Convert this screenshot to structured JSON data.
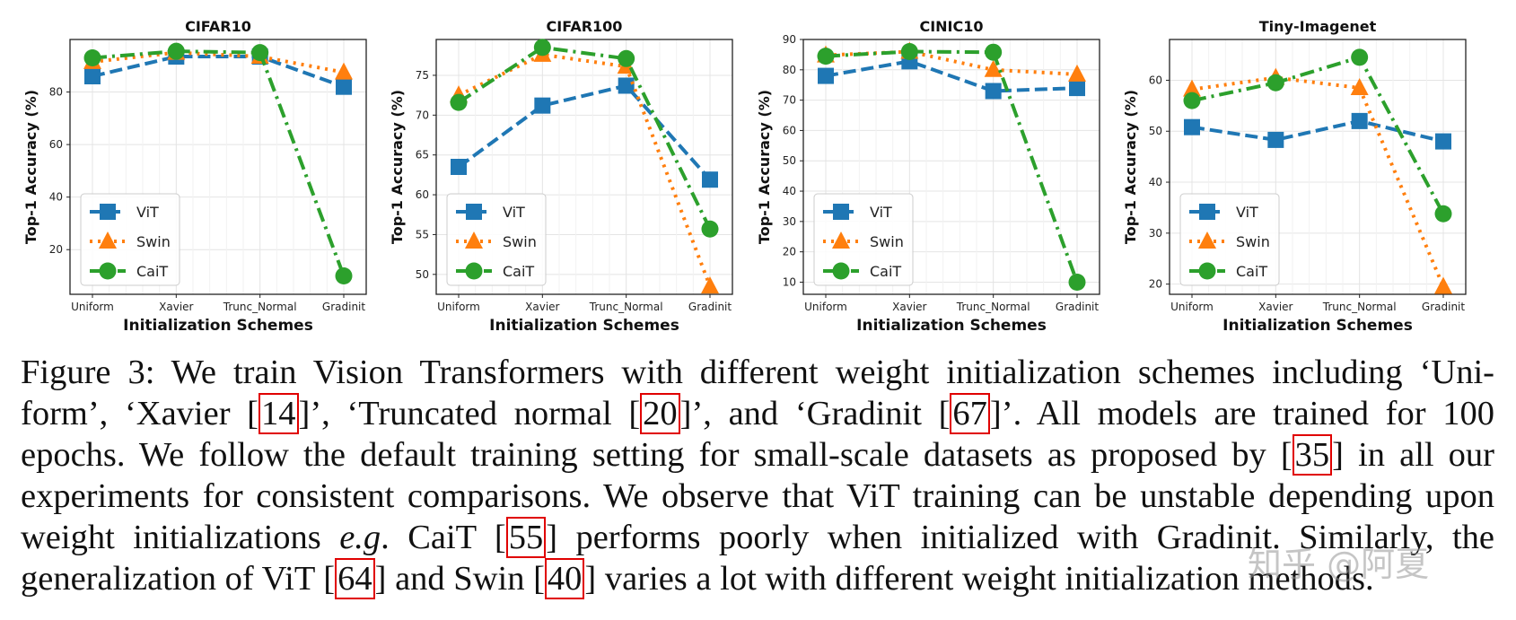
{
  "chart_data": [
    {
      "type": "line",
      "title": "CIFAR10",
      "xlabel": "Initialization Schemes",
      "ylabel": "Top-1 Accuracy (%)",
      "categories": [
        "Uniform",
        "Xavier",
        "Trunc_Normal",
        "Gradinit"
      ],
      "ylim": [
        3,
        100
      ],
      "yticks": [
        20,
        40,
        60,
        80
      ],
      "grid": true,
      "legend_position": "lower-left",
      "series": [
        {
          "name": "ViT",
          "values": [
            86,
            93.5,
            93.5,
            82
          ]
        },
        {
          "name": "Swin",
          "values": [
            91.5,
            95,
            93.5,
            87.5
          ]
        },
        {
          "name": "CaiT",
          "values": [
            93,
            95.5,
            95,
            10
          ]
        }
      ]
    },
    {
      "type": "line",
      "title": "CIFAR100",
      "xlabel": "Initialization Schemes",
      "ylabel": "Top-1 Accuracy (%)",
      "categories": [
        "Uniform",
        "Xavier",
        "Trunc_Normal",
        "Gradinit"
      ],
      "ylim": [
        47.5,
        79.5
      ],
      "yticks": [
        50,
        55,
        60,
        65,
        70,
        75
      ],
      "grid": true,
      "legend_position": "lower-left",
      "series": [
        {
          "name": "ViT",
          "values": [
            63.5,
            71.2,
            73.7,
            61.9
          ]
        },
        {
          "name": "Swin",
          "values": [
            72.5,
            77.6,
            76.1,
            48.5
          ]
        },
        {
          "name": "CaiT",
          "values": [
            71.6,
            78.5,
            77.1,
            55.7
          ]
        }
      ]
    },
    {
      "type": "line",
      "title": "CINIC10",
      "xlabel": "Initialization Schemes",
      "ylabel": "Top-1 Accuracy (%)",
      "categories": [
        "Uniform",
        "Xavier",
        "Trunc_Normal",
        "Gradinit"
      ],
      "ylim": [
        6,
        90
      ],
      "yticks": [
        10,
        20,
        30,
        40,
        50,
        60,
        70,
        80,
        90
      ],
      "grid": true,
      "legend_position": "lower-left",
      "series": [
        {
          "name": "ViT",
          "values": [
            78,
            82.8,
            73,
            74
          ]
        },
        {
          "name": "Swin",
          "values": [
            84.8,
            86,
            80,
            78.5
          ]
        },
        {
          "name": "CaiT",
          "values": [
            84.5,
            86,
            85.8,
            10
          ]
        }
      ]
    },
    {
      "type": "line",
      "title": "Tiny-Imagenet",
      "xlabel": "Initialization Schemes",
      "ylabel": "Top-1 Accuracy (%)",
      "categories": [
        "Uniform",
        "Xavier",
        "Trunc_Normal",
        "Gradinit"
      ],
      "ylim": [
        18,
        68
      ],
      "yticks": [
        20,
        30,
        40,
        50,
        60
      ],
      "grid": true,
      "legend_position": "lower-left",
      "series": [
        {
          "name": "ViT",
          "values": [
            50.8,
            48.3,
            52,
            48
          ]
        },
        {
          "name": "Swin",
          "values": [
            58.2,
            60.5,
            58.5,
            19.5
          ]
        },
        {
          "name": "CaiT",
          "values": [
            56,
            59.5,
            64.5,
            33.8
          ]
        }
      ]
    }
  ],
  "series_style": {
    "ViT": {
      "color": "#1f77b4",
      "marker": "square",
      "dash": "dashed"
    },
    "Swin": {
      "color": "#ff7f0e",
      "marker": "triangle",
      "dash": "dotted"
    },
    "CaiT": {
      "color": "#2ca02c",
      "marker": "circle",
      "dash": "dash-dot"
    }
  },
  "caption": {
    "lines": [
      [
        {
          "t": "Figure 3: We train Vision Transformers with different weight initialization schemes including ‘Uni-"
        }
      ],
      [
        {
          "t": "form’, ‘Xavier ["
        },
        {
          "ref": "14"
        },
        {
          "t": "]’, ‘Truncated normal ["
        },
        {
          "ref": "20"
        },
        {
          "t": "]’, and ‘Gradinit ["
        },
        {
          "ref": "67"
        },
        {
          "t": "]’.  All models are trained for 100"
        }
      ],
      [
        {
          "t": "epochs.  We follow the default training setting for small-scale datasets as proposed by ["
        },
        {
          "ref": "35"
        },
        {
          "t": "] in all our"
        }
      ],
      [
        {
          "t": "experiments for consistent comparisons. We observe that ViT training can be unstable depending upon"
        }
      ],
      [
        {
          "t": "weight initializations "
        },
        {
          "em": "e.g"
        },
        {
          "t": ". CaiT ["
        },
        {
          "ref": "55"
        },
        {
          "t": "] performs poorly when initialized with Gradinit.  Similarly, the"
        }
      ],
      [
        {
          "t": "generalization of ViT ["
        },
        {
          "ref": "64"
        },
        {
          "t": "] and Swin ["
        },
        {
          "ref": "40"
        },
        {
          "t": "] varies a lot with different weight initialization methods."
        }
      ]
    ]
  },
  "watermark": "知乎 @阿夏"
}
